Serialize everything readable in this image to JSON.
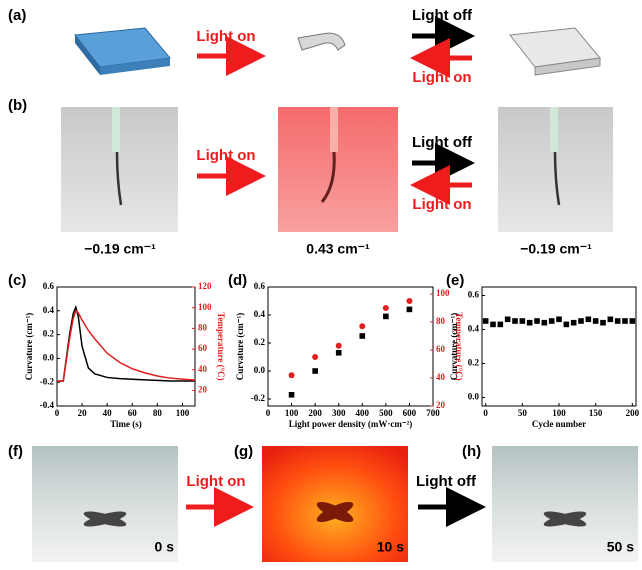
{
  "panel_labels": [
    "(a)",
    "(b)",
    "(c)",
    "(d)",
    "(e)",
    "(f)",
    "(g)",
    "(h)"
  ],
  "arrow_labels": {
    "a": [
      "Light on",
      "Light off",
      "Light on"
    ],
    "b": [
      "Light on",
      "Light off",
      "Light on"
    ],
    "f": [
      "Light on",
      "Light off"
    ]
  },
  "curvature_captions": [
    "−0.19 cm⁻¹",
    "0.43 cm⁻¹",
    "−0.19 cm⁻¹"
  ],
  "time_labels": [
    "0 s",
    "10 s",
    "50 s"
  ],
  "chart_data": [
    {
      "type": "line",
      "xlabel": "Time (s)",
      "ylabel": "Curvature (cm⁻¹)",
      "y2label": "Temperature (°C)",
      "y2color": "#e02020",
      "x": [
        0,
        5,
        10,
        13,
        15,
        17,
        20,
        25,
        30,
        40,
        50,
        60,
        70,
        80,
        90,
        100,
        110
      ],
      "series": [
        {
          "color": "#000000",
          "values": [
            -0.19,
            -0.19,
            0.2,
            0.38,
            0.43,
            0.35,
            0.1,
            -0.08,
            -0.13,
            -0.16,
            -0.17,
            -0.175,
            -0.18,
            -0.185,
            -0.19,
            -0.19,
            -0.19
          ]
        },
        {
          "color": "#e02020",
          "axis": "y2",
          "values": [
            29,
            29,
            70,
            90,
            97,
            95,
            88,
            78,
            70,
            56,
            47,
            41,
            37,
            34,
            32,
            31,
            30
          ]
        }
      ],
      "xlim": [
        0,
        110
      ],
      "xticks": [
        0,
        20,
        40,
        60,
        80,
        100
      ],
      "ylim": [
        -0.4,
        0.6
      ],
      "yticks": [
        -0.4,
        -0.2,
        {
          "value": 0,
          "label": "0.0"
        },
        0.2,
        0.4,
        0.6
      ],
      "y2lim": [
        5,
        120
      ],
      "y2ticks": [
        20,
        40,
        60,
        80,
        100,
        120
      ]
    },
    {
      "type": "scatter",
      "xlabel": "Light power density (mW·cm⁻²)",
      "ylabel": "Curvature (cm⁻¹)",
      "y2label": "Temperature (°C)",
      "y2color": "#e02020",
      "x": [
        100,
        200,
        300,
        400,
        500,
        600
      ],
      "series": [
        {
          "color": "#000000",
          "marker": "square",
          "values": [
            -0.17,
            0.0,
            0.13,
            0.25,
            0.39,
            0.44
          ]
        },
        {
          "color": "#e02020",
          "marker": "circle",
          "axis": "y2",
          "values": [
            42,
            55,
            63,
            77,
            90,
            95
          ]
        }
      ],
      "xlim": [
        0,
        700
      ],
      "xticks": [
        0,
        100,
        200,
        300,
        400,
        500,
        600,
        700
      ],
      "ylim": [
        -0.25,
        0.6
      ],
      "yticks": [
        -0.2,
        {
          "value": 0,
          "label": "0.0"
        },
        0.2,
        0.4,
        0.6
      ],
      "y2lim": [
        20,
        105
      ],
      "y2ticks": [
        20,
        40,
        60,
        80,
        100
      ]
    },
    {
      "type": "scatter",
      "xlabel": "Cycle number",
      "ylabel": "Curvature (cm⁻¹)",
      "x": [
        0,
        10,
        20,
        30,
        40,
        50,
        60,
        70,
        80,
        90,
        100,
        110,
        120,
        130,
        140,
        150,
        160,
        170,
        180,
        190,
        200
      ],
      "series": [
        {
          "color": "#000000",
          "marker": "square",
          "values": [
            0.45,
            0.43,
            0.43,
            0.46,
            0.45,
            0.45,
            0.44,
            0.45,
            0.44,
            0.45,
            0.46,
            0.43,
            0.44,
            0.45,
            0.46,
            0.45,
            0.44,
            0.46,
            0.45,
            0.45,
            0.45
          ]
        }
      ],
      "xlim": [
        -5,
        205
      ],
      "xticks": [
        0,
        50,
        100,
        150,
        200
      ],
      "ylim": [
        -0.05,
        0.65
      ],
      "yticks": [
        {
          "value": 0,
          "label": "0.0"
        },
        0.2,
        0.4,
        0.6
      ]
    }
  ]
}
